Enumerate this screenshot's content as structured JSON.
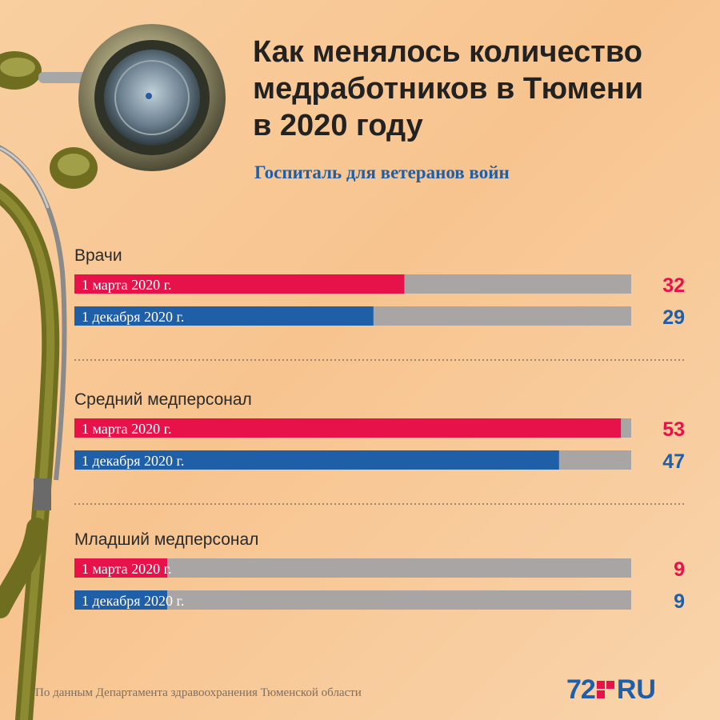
{
  "title_lines": [
    "Как менялось количество",
    "медработников в Тюмени",
    "в 2020 году"
  ],
  "subtitle": "Госпиталь для ветеранов войн",
  "source": "По данным Департамента здравоохранения Тюменской области",
  "logo": {
    "number": "72",
    "suffix": "RU"
  },
  "colors": {
    "march": "#e7124a",
    "december": "#1f5fa8",
    "track": "#a8a5a4"
  },
  "chart_data": {
    "type": "bar",
    "orientation": "horizontal",
    "xlim": [
      0,
      54
    ],
    "series_labels": [
      "1 марта 2020 г.",
      "1 декабря 2020 г."
    ],
    "groups": [
      {
        "category": "Врачи",
        "values": [
          32,
          29
        ]
      },
      {
        "category": "Средний медперсонал",
        "values": [
          53,
          47
        ]
      },
      {
        "category": "Младший медперсонал",
        "values": [
          9,
          9
        ]
      }
    ]
  }
}
